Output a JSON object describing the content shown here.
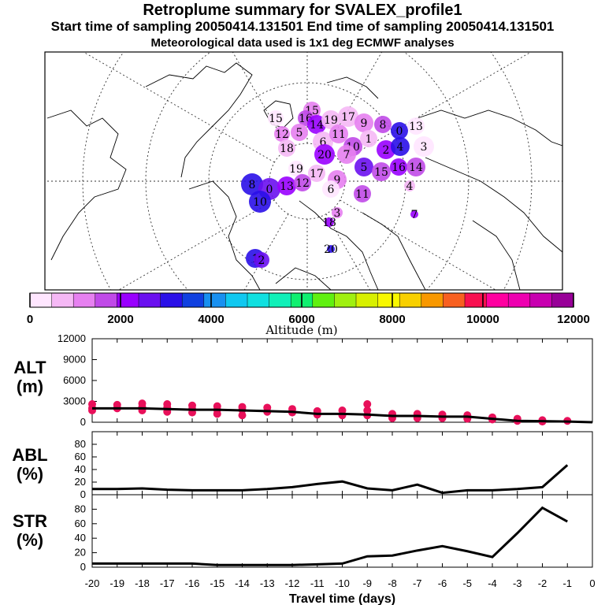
{
  "header": {
    "title": "Retroplume summary for SVALEX_profile1",
    "sampling": "Start time of sampling 20050414.131501     End time of sampling 20050414.131501",
    "met": "Meteorological data used is 1x1 deg ECMWF analyses"
  },
  "colors": {
    "altitude_scale": [
      "#ffe6ff",
      "#f5b8f5",
      "#e680f0",
      "#c04ae8",
      "#9900ff",
      "#6a10f0",
      "#2a10e8",
      "#1040e0",
      "#1890f0",
      "#10c8f0",
      "#10e0e0",
      "#10f0b8",
      "#10f070",
      "#60f010",
      "#a0f010",
      "#d8f000",
      "#f8f800",
      "#f8d000",
      "#f89800",
      "#f86020",
      "#f81050",
      "#ff00a0",
      "#ee00b0",
      "#c800b0",
      "#980098"
    ],
    "dots": "#e8105a",
    "line": "#000000"
  },
  "map_labels": [
    "15",
    "16",
    "14",
    "19",
    "17",
    "9",
    "8",
    "0",
    "13",
    "12",
    "6",
    "11",
    "10",
    "1",
    "2",
    "4",
    "3",
    "18",
    "20",
    "7",
    "5"
  ],
  "chart_data": [
    {
      "type": "scatter+line",
      "name": "ALT",
      "ylabel": "ALT (m)",
      "ylabel_top": "ALT",
      "ylabel_bottom": "(m)",
      "ylim": [
        0,
        12000
      ],
      "yticks": [
        "12000",
        "9000",
        "6000",
        "3000",
        "0"
      ],
      "x": [
        -20,
        -19,
        -18,
        -17,
        -16,
        -15,
        -14,
        -13,
        -12,
        -11,
        -10,
        -9,
        -8,
        -7,
        -6,
        -5,
        -4,
        -3,
        -2,
        -1,
        0
      ],
      "values": [
        2000,
        2000,
        2000,
        1900,
        1800,
        1800,
        1700,
        1600,
        1500,
        1200,
        1200,
        1100,
        900,
        900,
        800,
        800,
        500,
        200,
        150,
        100,
        0
      ],
      "points": [
        [
          -20,
          2600
        ],
        [
          -20,
          2000
        ],
        [
          -20,
          1700
        ],
        [
          -19,
          2500
        ],
        [
          -19,
          2000
        ],
        [
          -18,
          2700
        ],
        [
          -18,
          2200
        ],
        [
          -18,
          1700
        ],
        [
          -17,
          2600
        ],
        [
          -17,
          2100
        ],
        [
          -17,
          1500
        ],
        [
          -16,
          2400
        ],
        [
          -16,
          1900
        ],
        [
          -16,
          1400
        ],
        [
          -15,
          2300
        ],
        [
          -15,
          1800
        ],
        [
          -15,
          1200
        ],
        [
          -14,
          2200
        ],
        [
          -14,
          1800
        ],
        [
          -14,
          1000
        ],
        [
          -13,
          2100
        ],
        [
          -13,
          1500
        ],
        [
          -12,
          1900
        ],
        [
          -12,
          1400
        ],
        [
          -11,
          1600
        ],
        [
          -11,
          1100
        ],
        [
          -10,
          1700
        ],
        [
          -10,
          1000
        ],
        [
          -9,
          2600
        ],
        [
          -9,
          1700
        ],
        [
          -9,
          1000
        ],
        [
          -8,
          1200
        ],
        [
          -8,
          600
        ],
        [
          -7,
          1200
        ],
        [
          -7,
          600
        ],
        [
          -6,
          1100
        ],
        [
          -6,
          600
        ],
        [
          -5,
          1000
        ],
        [
          -5,
          500
        ],
        [
          -4,
          700
        ],
        [
          -4,
          400
        ],
        [
          -3,
          500
        ],
        [
          -3,
          200
        ],
        [
          -2,
          300
        ],
        [
          -2,
          100
        ],
        [
          -1,
          200
        ]
      ]
    },
    {
      "type": "line",
      "name": "ABL",
      "ylabel": "ABL (%)",
      "ylabel_top": "ABL",
      "ylabel_bottom": "(%)",
      "ylim": [
        0,
        100
      ],
      "yticks": [
        "80",
        "60",
        "40",
        "20",
        "0"
      ],
      "x": [
        -20,
        -19,
        -18,
        -17,
        -16,
        -15,
        -14,
        -13,
        -12,
        -11,
        -10,
        -9,
        -8,
        -7,
        -6,
        -5,
        -4,
        -3,
        -2,
        -1
      ],
      "values": [
        9,
        9,
        10,
        8,
        7,
        7,
        7,
        9,
        12,
        17,
        21,
        10,
        7,
        16,
        3,
        7,
        7,
        9,
        12,
        47
      ]
    },
    {
      "type": "line",
      "name": "STR",
      "ylabel": "STR (%)",
      "ylabel_top": "STR",
      "ylabel_bottom": "(%)",
      "ylim": [
        0,
        100
      ],
      "yticks": [
        "80",
        "60",
        "40",
        "20",
        "0"
      ],
      "x": [
        -20,
        -19,
        -18,
        -17,
        -16,
        -15,
        -14,
        -13,
        -12,
        -11,
        -10,
        -9,
        -8,
        -7,
        -6,
        -5,
        -4,
        -3,
        -2,
        -1
      ],
      "values": [
        5,
        5,
        5,
        5,
        5,
        3,
        3,
        3,
        3,
        4,
        5,
        15,
        16,
        23,
        29,
        22,
        14,
        47,
        82,
        63
      ],
      "xlabel": "Travel time (days)",
      "xtick_labels": [
        "-20",
        "-19",
        "-18",
        "-17",
        "-16",
        "-15",
        "-14",
        "-13",
        "-12",
        "-11",
        "-10",
        "-9",
        "-8",
        "-7",
        "-6",
        "-5",
        "-4",
        "-3",
        "-2",
        "-1",
        "0"
      ]
    }
  ],
  "colorbar": {
    "labels": [
      "0",
      "2000",
      "4000",
      "6000",
      "8000",
      "10000",
      "12000"
    ],
    "title": "Altitude (m)"
  }
}
